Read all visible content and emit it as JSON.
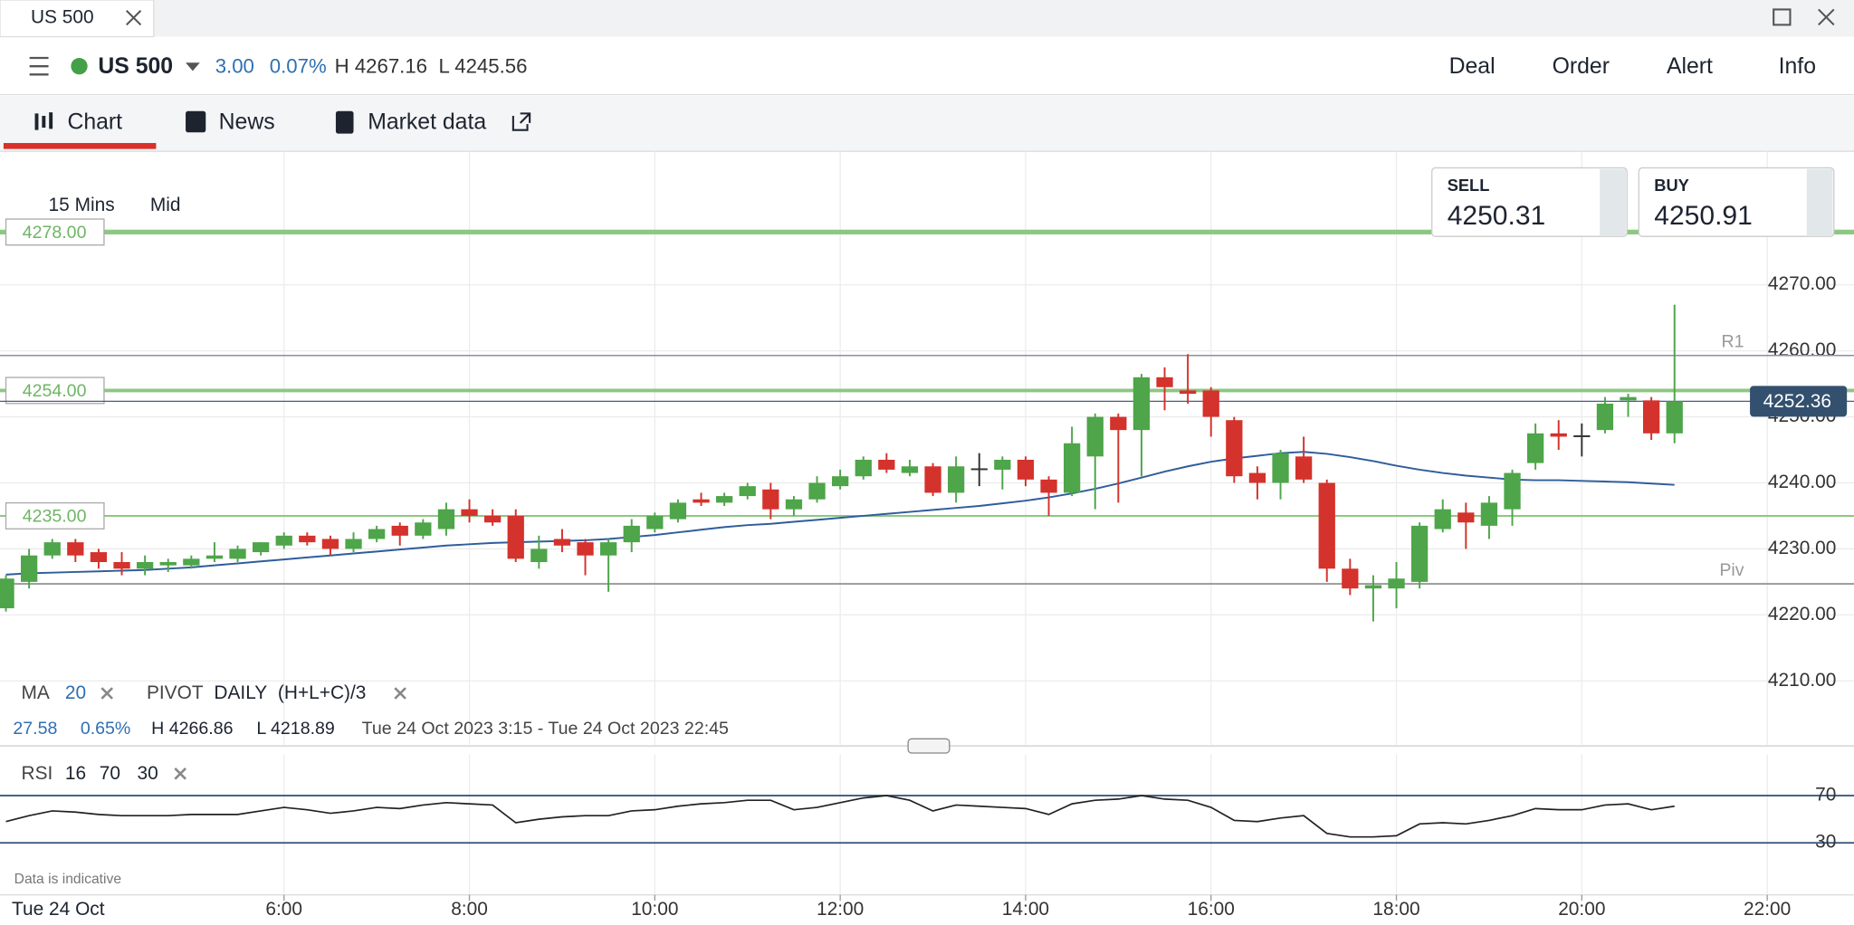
{
  "tab": {
    "title": "US 500"
  },
  "header": {
    "instrument": "US 500",
    "change": "3.00",
    "change_pct": "0.07%",
    "high": "H 4267.16",
    "low": "L 4245.56",
    "actions": [
      "Deal",
      "Order",
      "Alert",
      "Info"
    ]
  },
  "nav": [
    "Chart",
    "News",
    "Market data"
  ],
  "quote": {
    "sell_label": "SELL",
    "sell": "4250.31",
    "buy_label": "BUY",
    "buy": "4250.91"
  },
  "chart_data": {
    "type": "candlestick",
    "interval": "15 Mins",
    "price_type": "Mid",
    "date_label": "Tue 24 Oct",
    "ohlc": [
      [
        4221,
        4226,
        4220.5,
        4225.5
      ],
      [
        4225,
        4230,
        4224,
        4229
      ],
      [
        4229,
        4231.5,
        4228.5,
        4231
      ],
      [
        4231,
        4231.5,
        4228,
        4229
      ],
      [
        4229.5,
        4230,
        4227,
        4228
      ],
      [
        4228,
        4229.5,
        4226,
        4227
      ],
      [
        4227,
        4229,
        4226,
        4228
      ],
      [
        4227.5,
        4228.5,
        4226.5,
        4228
      ],
      [
        4227.5,
        4229,
        4227,
        4228.5
      ],
      [
        4228.5,
        4231,
        4228,
        4229
      ],
      [
        4228.5,
        4230.5,
        4228,
        4230
      ],
      [
        4229.5,
        4231,
        4229,
        4231
      ],
      [
        4230.5,
        4232.5,
        4230,
        4232
      ],
      [
        4232,
        4232.5,
        4230.5,
        4231
      ],
      [
        4231.5,
        4232,
        4229,
        4230
      ],
      [
        4230,
        4232.5,
        4229.5,
        4231.5
      ],
      [
        4231.5,
        4233.5,
        4231,
        4233
      ],
      [
        4233.5,
        4234,
        4230.5,
        4232
      ],
      [
        4232,
        4234.5,
        4231.5,
        4234
      ],
      [
        4233,
        4237,
        4232,
        4236
      ],
      [
        4236,
        4237.5,
        4234,
        4235
      ],
      [
        4235,
        4236,
        4233.5,
        4234
      ],
      [
        4235,
        4236,
        4228,
        4228.5
      ],
      [
        4228,
        4232,
        4227,
        4230
      ],
      [
        4231.5,
        4233,
        4229.5,
        4230.5
      ],
      [
        4231,
        4231.5,
        4226,
        4229
      ],
      [
        4229,
        4231.5,
        4223.5,
        4231
      ],
      [
        4231,
        4234.5,
        4229.5,
        4233.5
      ],
      [
        4233,
        4235.5,
        4232.5,
        4235
      ],
      [
        4234.5,
        4237.5,
        4234,
        4237
      ],
      [
        4237.5,
        4238.5,
        4236.5,
        4237
      ],
      [
        4237,
        4238.5,
        4236.5,
        4238
      ],
      [
        4238,
        4240,
        4237.5,
        4239.5
      ],
      [
        4239,
        4240,
        4234.5,
        4236
      ],
      [
        4236,
        4238,
        4235,
        4237.5
      ],
      [
        4237.5,
        4241,
        4237,
        4240
      ],
      [
        4239.5,
        4242,
        4239,
        4241
      ],
      [
        4241,
        4244,
        4240.5,
        4243.5
      ],
      [
        4243.5,
        4244.5,
        4241.5,
        4242
      ],
      [
        4241.5,
        4243.5,
        4241,
        4242.5
      ],
      [
        4242.5,
        4243,
        4238,
        4238.5
      ],
      [
        4238.5,
        4244,
        4237,
        4242.5
      ],
      [
        4242,
        4244.5,
        4239.5,
        4242.2
      ],
      [
        4242,
        4244,
        4239,
        4243.5
      ],
      [
        4243.5,
        4244,
        4239.5,
        4240.5
      ],
      [
        4240.5,
        4241,
        4235,
        4238.5
      ],
      [
        4238.5,
        4248.5,
        4238,
        4246
      ],
      [
        4244,
        4250.5,
        4236,
        4250
      ],
      [
        4250,
        4250.5,
        4237,
        4248
      ],
      [
        4248,
        4256.5,
        4241,
        4256
      ],
      [
        4256,
        4257.5,
        4251,
        4254.5
      ],
      [
        4254,
        4259.5,
        4252,
        4253.5
      ],
      [
        4254,
        4254.5,
        4247,
        4250
      ],
      [
        4249.5,
        4250,
        4240,
        4241
      ],
      [
        4241.5,
        4242.5,
        4237.5,
        4240
      ],
      [
        4240,
        4245,
        4237.5,
        4244.5
      ],
      [
        4244,
        4247,
        4240,
        4240.5
      ],
      [
        4240,
        4240.5,
        4225,
        4227
      ],
      [
        4227,
        4228.5,
        4223,
        4224
      ],
      [
        4224,
        4226,
        4219,
        4224.5
      ],
      [
        4224,
        4228,
        4221,
        4225.5
      ],
      [
        4225,
        4234,
        4224,
        4233.5
      ],
      [
        4233,
        4237.5,
        4232.5,
        4236
      ],
      [
        4235.5,
        4237,
        4230,
        4234
      ],
      [
        4233.5,
        4238,
        4231.5,
        4237
      ],
      [
        4236,
        4242,
        4233.5,
        4241.5
      ],
      [
        4243,
        4249,
        4242,
        4247.5
      ],
      [
        4247.5,
        4249.5,
        4245,
        4247
      ],
      [
        4247,
        4249,
        4244,
        4247.2
      ],
      [
        4248,
        4253,
        4247.5,
        4252
      ],
      [
        4252.5,
        4253.5,
        4250,
        4253
      ],
      [
        4252.5,
        4253,
        4246.5,
        4247.5
      ],
      [
        4247.5,
        4267,
        4246,
        4252.36
      ]
    ],
    "ylim": [
      4205,
      4290
    ],
    "yticks": [
      {
        "value": 4210,
        "label": "4210.00"
      },
      {
        "value": 4220,
        "label": "4220.00"
      },
      {
        "value": 4230,
        "label": "4230.00"
      },
      {
        "value": 4240,
        "label": "4240.00"
      },
      {
        "value": 4250,
        "label": "4250.00"
      },
      {
        "value": 4260,
        "label": "4260.00"
      },
      {
        "value": 4270,
        "label": "4270.00"
      }
    ],
    "xticks": [
      "6:00",
      "8:00",
      "10:00",
      "12:00",
      "14:00",
      "16:00",
      "18:00",
      "20:00",
      "22:00"
    ],
    "levels": [
      {
        "value": 4278,
        "label": "4278.00"
      },
      {
        "value": 4254,
        "label": "4254.00"
      },
      {
        "value": 4235,
        "label": "4235.00"
      }
    ],
    "pivots": [
      {
        "name": "R1",
        "value": 4259.3
      },
      {
        "name": "Piv",
        "value": 4224.7
      }
    ],
    "last_price": 4252.36,
    "ma": {
      "name": "MA",
      "period": 20,
      "color": "#2f5d9a",
      "values": [
        4226.1,
        4226.3,
        4226.4,
        4226.5,
        4226.6,
        4226.7,
        4226.8,
        4227.0,
        4227.2,
        4227.5,
        4227.8,
        4228.1,
        4228.4,
        4228.7,
        4229.0,
        4229.3,
        4229.6,
        4229.9,
        4230.2,
        4230.5,
        4230.7,
        4230.9,
        4231.0,
        4231.1,
        4231.2,
        4231.3,
        4231.5,
        4231.8,
        4232.1,
        4232.5,
        4232.9,
        4233.3,
        4233.6,
        4233.8,
        4234.1,
        4234.4,
        4234.7,
        4235.0,
        4235.3,
        4235.6,
        4235.9,
        4236.2,
        4236.5,
        4236.9,
        4237.3,
        4237.8,
        4238.4,
        4239.1,
        4239.9,
        4240.8,
        4241.7,
        4242.5,
        4243.2,
        4243.7,
        4244.1,
        4244.5,
        4244.7,
        4244.4,
        4243.9,
        4243.3,
        4242.6,
        4242.0,
        4241.5,
        4241.1,
        4240.8,
        4240.5,
        4240.4,
        4240.4,
        4240.3,
        4240.2,
        4240.1,
        4239.9,
        4239.7
      ]
    },
    "pivot": {
      "name": "PIVOT",
      "period": "DAILY",
      "formula": "(H+L+C)/3"
    },
    "stats": {
      "change": "27.58",
      "change_pct": "0.65%",
      "high": "H 4266.86",
      "low": "L 4218.89",
      "range": "Tue 24 Oct 2023 3:15 - Tue 24 Oct 2023 22:45"
    },
    "rsi": {
      "name": "RSI",
      "period": 16,
      "upper": 70,
      "lower": 30,
      "ylim": [
        0,
        100
      ],
      "yticks": [
        70,
        30
      ],
      "values": [
        48,
        53,
        57,
        56,
        54,
        53,
        53,
        53,
        54,
        54,
        54,
        57,
        60,
        58,
        55,
        57,
        60,
        59,
        62,
        64,
        63,
        62,
        47,
        50,
        52,
        53,
        53,
        57,
        58,
        61,
        63,
        64,
        66,
        66,
        58,
        60,
        64,
        68,
        70,
        66,
        57,
        62,
        61,
        60,
        59,
        54,
        63,
        66,
        67,
        70,
        67,
        66,
        60,
        49,
        48,
        51,
        53,
        38,
        35,
        35,
        36,
        46,
        47,
        46,
        49,
        53,
        59,
        58,
        58,
        62,
        63,
        58,
        61
      ]
    },
    "footnote": "Data is indicative"
  }
}
